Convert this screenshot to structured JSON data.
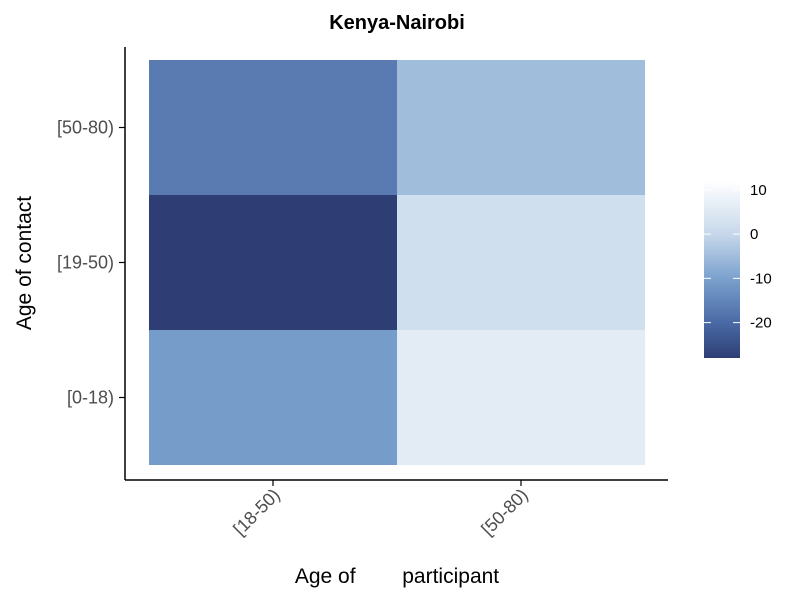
{
  "chart_data": {
    "type": "heatmap",
    "title": "Kenya-Nairobi",
    "xlabel": "Age of        participant",
    "ylabel": "Age of contact",
    "x_categories": [
      "[18-50)",
      "[50-80)"
    ],
    "y_categories": [
      "[0-18)",
      "[19-50)",
      "[50-80)"
    ],
    "values": [
      [
        -11,
        6
      ],
      [
        -28,
        2
      ],
      [
        -17,
        -5
      ]
    ],
    "color_scale": {
      "min": -28,
      "max": 12,
      "stops": [
        {
          "value": -28,
          "color": "#2e3e74"
        },
        {
          "value": -20,
          "color": "#4a6aa5"
        },
        {
          "value": -10,
          "color": "#7ba1cd"
        },
        {
          "value": 0,
          "color": "#c7d8eb"
        },
        {
          "value": 12,
          "color": "#ffffff"
        }
      ]
    },
    "legend": {
      "position": "right",
      "ticks": [
        10,
        0,
        -10,
        -20
      ],
      "tick_labels": [
        "10",
        "0",
        "-10",
        "-20"
      ]
    },
    "grid": false
  }
}
